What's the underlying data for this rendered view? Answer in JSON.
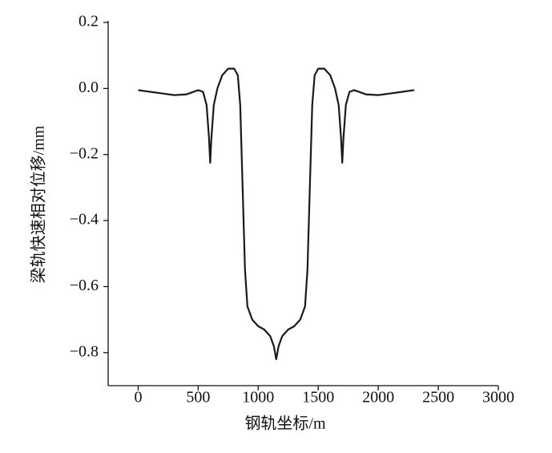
{
  "chart_data": {
    "type": "line",
    "xlabel": "钢轨坐标/m",
    "ylabel": "梁轨快速相对位移/mm",
    "x": [
      0,
      100,
      200,
      300,
      400,
      500,
      540,
      570,
      590,
      600,
      610,
      630,
      660,
      700,
      750,
      800,
      830,
      850,
      870,
      890,
      910,
      950,
      1000,
      1050,
      1100,
      1130,
      1150,
      1170,
      1200,
      1250,
      1300,
      1350,
      1390,
      1410,
      1430,
      1450,
      1470,
      1500,
      1550,
      1600,
      1640,
      1670,
      1690,
      1700,
      1710,
      1730,
      1760,
      1800,
      1900,
      2000,
      2100,
      2200,
      2300
    ],
    "values": [
      -0.005,
      -0.01,
      -0.015,
      -0.02,
      -0.018,
      -0.005,
      -0.01,
      -0.05,
      -0.15,
      -0.225,
      -0.15,
      -0.05,
      0.0,
      0.04,
      0.06,
      0.06,
      0.04,
      -0.05,
      -0.3,
      -0.55,
      -0.66,
      -0.7,
      -0.72,
      -0.73,
      -0.75,
      -0.78,
      -0.82,
      -0.78,
      -0.75,
      -0.73,
      -0.72,
      -0.7,
      -0.66,
      -0.55,
      -0.3,
      -0.05,
      0.04,
      0.06,
      0.06,
      0.04,
      0.0,
      -0.05,
      -0.15,
      -0.225,
      -0.15,
      -0.05,
      -0.01,
      -0.005,
      -0.018,
      -0.02,
      -0.015,
      -0.01,
      -0.005
    ],
    "color": "#1a1a1a",
    "xlim": [
      -250,
      3000
    ],
    "xticks": [
      0,
      500,
      1000,
      1500,
      2000,
      2500,
      3000
    ],
    "ylim": [
      -0.9,
      0.2
    ],
    "yticks": [
      {
        "value": -0.8,
        "label": "−0.8"
      },
      {
        "value": -0.6,
        "label": "−0.6"
      },
      {
        "value": -0.4,
        "label": "−0.4"
      },
      {
        "value": -0.2,
        "label": "−0.2"
      },
      {
        "value": 0.0,
        "label": "0.0"
      },
      0.2
    ],
    "grid": false
  }
}
